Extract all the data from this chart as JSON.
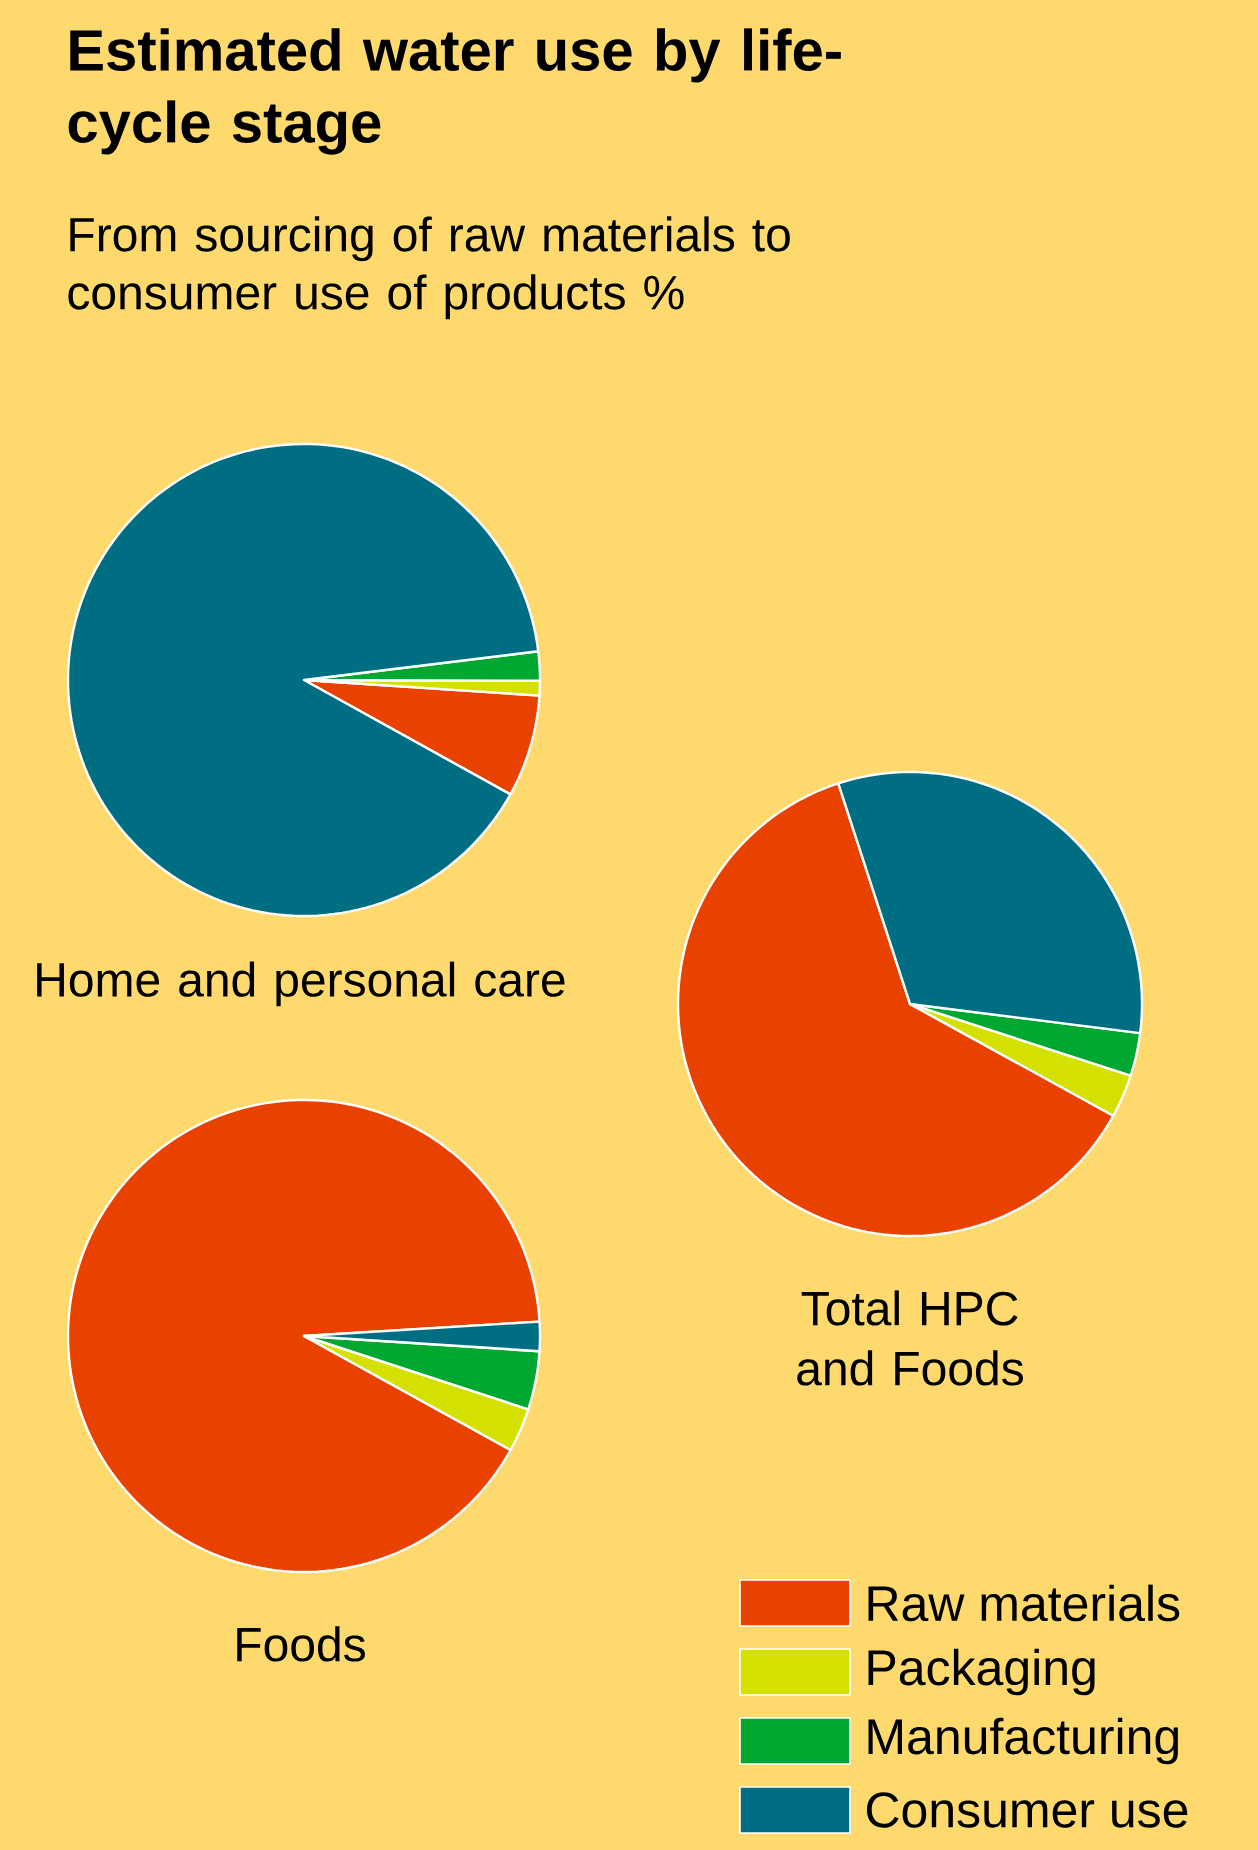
{
  "chart_data": [
    {
      "type": "other",
      "title": "Estimated water use by life-cycle stage",
      "subtitle": "From sourcing of raw materials to consumer use of products %"
    },
    {
      "type": "pie",
      "title": "Home and personal care",
      "categories": [
        null,
        null,
        null,
        null
      ],
      "values": [
        7,
        1,
        2,
        90
      ],
      "colors": [
        "#e94200",
        "#d4e000",
        "#00a832",
        "#006e82"
      ]
    },
    {
      "type": "pie",
      "title": "Total HPC and Foods",
      "categories": [
        null,
        null,
        null,
        null
      ],
      "values": [
        62,
        3,
        3,
        32
      ],
      "colors": [
        "#e94200",
        "#d4e000",
        "#00a832",
        "#006e82"
      ]
    },
    {
      "type": "pie",
      "title": "Foods",
      "categories": [
        "Raw materials",
        "Packaging",
        "Manufacturing",
        "Consumer use"
      ],
      "values": [
        91,
        3,
        4,
        2
      ],
      "colors": [
        "#e94200",
        "#d4e000",
        "#00a832",
        "#006e82"
      ],
      "legend": "bottom right"
    }
  ]
}
